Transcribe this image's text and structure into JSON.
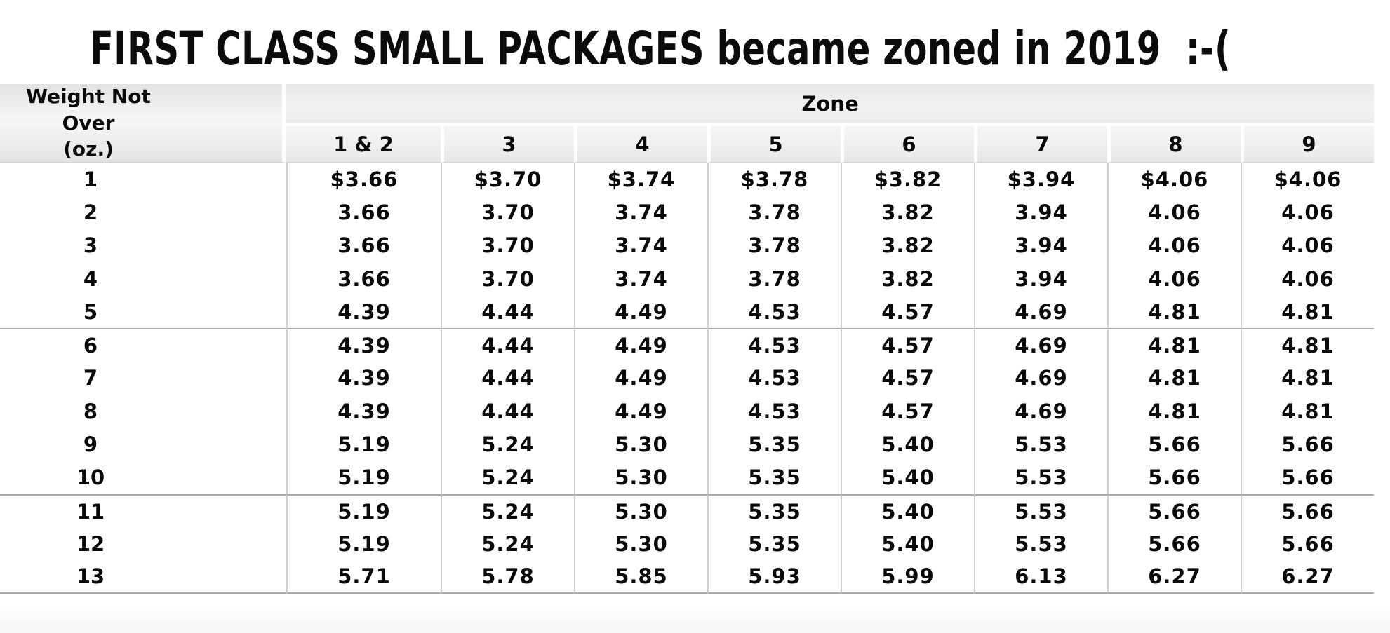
{
  "title": "FIRST CLASS SMALL PACKAGES became zoned in 2019  :-(",
  "table": {
    "weight_header": {
      "line1": "Weight Not Over",
      "line2": "(oz.)"
    },
    "zone_header": "Zone",
    "zone_columns": [
      "1 & 2",
      "3",
      "4",
      "5",
      "6",
      "7",
      "8",
      "9"
    ],
    "rows": [
      {
        "weight": "1",
        "prices": [
          "$3.66",
          "$3.70",
          "$3.74",
          "$3.78",
          "$3.82",
          "$3.94",
          "$4.06",
          "$4.06"
        ]
      },
      {
        "weight": "2",
        "prices": [
          "3.66",
          "3.70",
          "3.74",
          "3.78",
          "3.82",
          "3.94",
          "4.06",
          "4.06"
        ]
      },
      {
        "weight": "3",
        "prices": [
          "3.66",
          "3.70",
          "3.74",
          "3.78",
          "3.82",
          "3.94",
          "4.06",
          "4.06"
        ]
      },
      {
        "weight": "4",
        "prices": [
          "3.66",
          "3.70",
          "3.74",
          "3.78",
          "3.82",
          "3.94",
          "4.06",
          "4.06"
        ]
      },
      {
        "weight": "5",
        "prices": [
          "4.39",
          "4.44",
          "4.49",
          "4.53",
          "4.57",
          "4.69",
          "4.81",
          "4.81"
        ]
      },
      {
        "weight": "6",
        "prices": [
          "4.39",
          "4.44",
          "4.49",
          "4.53",
          "4.57",
          "4.69",
          "4.81",
          "4.81"
        ]
      },
      {
        "weight": "7",
        "prices": [
          "4.39",
          "4.44",
          "4.49",
          "4.53",
          "4.57",
          "4.69",
          "4.81",
          "4.81"
        ]
      },
      {
        "weight": "8",
        "prices": [
          "4.39",
          "4.44",
          "4.49",
          "4.53",
          "4.57",
          "4.69",
          "4.81",
          "4.81"
        ]
      },
      {
        "weight": "9",
        "prices": [
          "5.19",
          "5.24",
          "5.30",
          "5.35",
          "5.40",
          "5.53",
          "5.66",
          "5.66"
        ]
      },
      {
        "weight": "10",
        "prices": [
          "5.19",
          "5.24",
          "5.30",
          "5.35",
          "5.40",
          "5.53",
          "5.66",
          "5.66"
        ]
      },
      {
        "weight": "11",
        "prices": [
          "5.19",
          "5.24",
          "5.30",
          "5.35",
          "5.40",
          "5.53",
          "5.66",
          "5.66"
        ]
      },
      {
        "weight": "12",
        "prices": [
          "5.19",
          "5.24",
          "5.30",
          "5.35",
          "5.40",
          "5.53",
          "5.66",
          "5.66"
        ]
      },
      {
        "weight": "13",
        "prices": [
          "5.71",
          "5.78",
          "5.85",
          "5.93",
          "5.99",
          "6.13",
          "6.27",
          "6.27"
        ]
      }
    ],
    "group_breaks_after_rows": [
      5,
      10
    ]
  },
  "colors": {
    "header_bg": "#ededed",
    "grid_line": "#d2d2d2",
    "group_line": "#a8a8a8",
    "text": "#0a0a0a",
    "background": "#ffffff"
  },
  "chart_data": {
    "type": "table",
    "title": "FIRST CLASS SMALL PACKAGES became zoned in 2019  :-(",
    "row_label": "Weight Not Over (oz.)",
    "column_group_label": "Zone",
    "columns": [
      "1 & 2",
      "3",
      "4",
      "5",
      "6",
      "7",
      "8",
      "9"
    ],
    "row_categories": [
      "1",
      "2",
      "3",
      "4",
      "5",
      "6",
      "7",
      "8",
      "9",
      "10",
      "11",
      "12",
      "13"
    ],
    "values": [
      [
        3.66,
        3.7,
        3.74,
        3.78,
        3.82,
        3.94,
        4.06,
        4.06
      ],
      [
        3.66,
        3.7,
        3.74,
        3.78,
        3.82,
        3.94,
        4.06,
        4.06
      ],
      [
        3.66,
        3.7,
        3.74,
        3.78,
        3.82,
        3.94,
        4.06,
        4.06
      ],
      [
        3.66,
        3.7,
        3.74,
        3.78,
        3.82,
        3.94,
        4.06,
        4.06
      ],
      [
        4.39,
        4.44,
        4.49,
        4.53,
        4.57,
        4.69,
        4.81,
        4.81
      ],
      [
        4.39,
        4.44,
        4.49,
        4.53,
        4.57,
        4.69,
        4.81,
        4.81
      ],
      [
        4.39,
        4.44,
        4.49,
        4.53,
        4.57,
        4.69,
        4.81,
        4.81
      ],
      [
        4.39,
        4.44,
        4.49,
        4.53,
        4.57,
        4.69,
        4.81,
        4.81
      ],
      [
        5.19,
        5.24,
        5.3,
        5.35,
        5.4,
        5.53,
        5.66,
        5.66
      ],
      [
        5.19,
        5.24,
        5.3,
        5.35,
        5.4,
        5.53,
        5.66,
        5.66
      ],
      [
        5.19,
        5.24,
        5.3,
        5.35,
        5.4,
        5.53,
        5.66,
        5.66
      ],
      [
        5.19,
        5.24,
        5.3,
        5.35,
        5.4,
        5.53,
        5.66,
        5.66
      ],
      [
        5.71,
        5.78,
        5.85,
        5.93,
        5.99,
        6.13,
        6.27,
        6.27
      ]
    ],
    "units": "USD"
  }
}
